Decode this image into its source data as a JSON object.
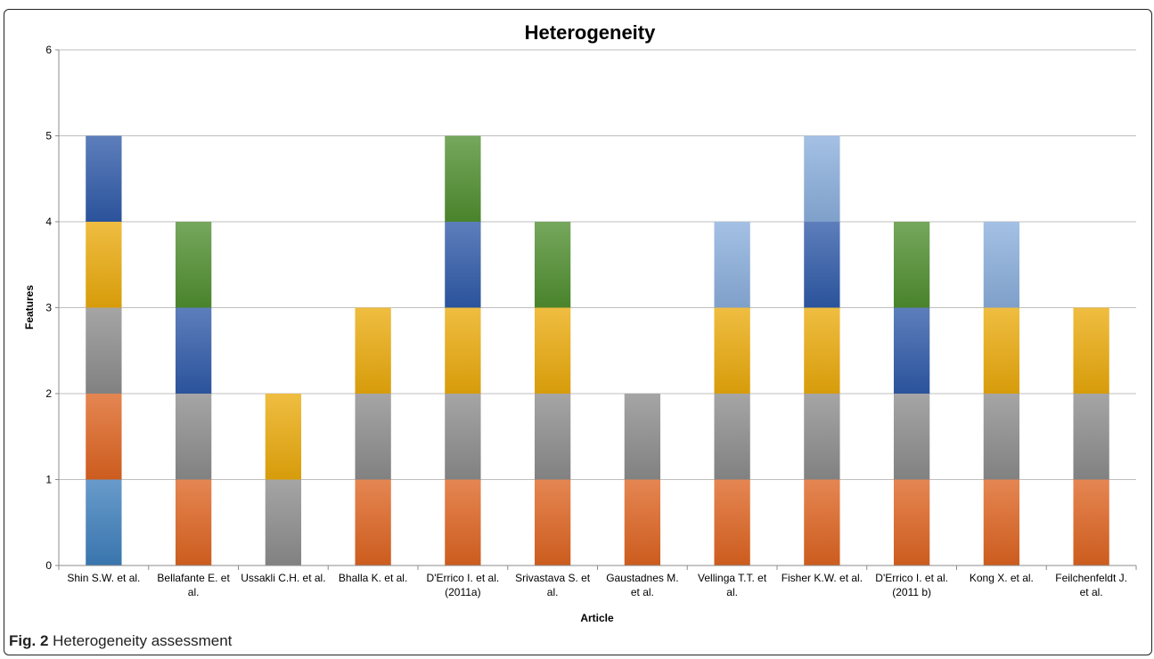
{
  "caption": {
    "label": "Fig. 2",
    "text": "Heterogeneity assessment"
  },
  "chart_data": {
    "type": "bar",
    "stacked": true,
    "title": "Heterogeneity",
    "xlabel": "Article",
    "ylabel": "Features",
    "ylim": [
      0,
      6
    ],
    "yticks": [
      0,
      1,
      2,
      3,
      4,
      5,
      6
    ],
    "grid": true,
    "legend": "none",
    "categories": [
      [
        "Shin S.W. et al."
      ],
      [
        "Bellafante E. et",
        "al."
      ],
      [
        "Ussakli C.H. et al."
      ],
      [
        "Bhalla K. et al."
      ],
      [
        "D'Errico I. et al.",
        "(2011a)"
      ],
      [
        "Srivastava S. et",
        "al."
      ],
      [
        "Gaustadnes M.",
        "et al."
      ],
      [
        "Vellinga T.T. et",
        "al."
      ],
      [
        "Fisher K.W. et al."
      ],
      [
        "D'Errico I. et al.",
        "(2011 b)"
      ],
      [
        "Kong X. et al."
      ],
      [
        "Feilchenfeldt J.",
        "et al."
      ]
    ],
    "colors": {
      "steel_blue": "#3e7fbc",
      "orange": "#de6421",
      "gray": "#8c8c8c",
      "gold": "#eaaa0c",
      "blue": "#2f5aa8",
      "green": "#4f8e2f",
      "light_blue": "#8aaedc"
    },
    "stacks": [
      [
        "steel_blue",
        "orange",
        "gray",
        "gold",
        "blue"
      ],
      [
        "orange",
        "gray",
        "blue",
        "green"
      ],
      [
        "gray",
        "gold"
      ],
      [
        "orange",
        "gray",
        "gold"
      ],
      [
        "orange",
        "gray",
        "gold",
        "blue",
        "green"
      ],
      [
        "orange",
        "gray",
        "gold",
        "green"
      ],
      [
        "orange",
        "gray"
      ],
      [
        "orange",
        "gray",
        "gold",
        "light_blue"
      ],
      [
        "orange",
        "gray",
        "gold",
        "blue",
        "light_blue"
      ],
      [
        "orange",
        "gray",
        "blue",
        "green"
      ],
      [
        "orange",
        "gray",
        "gold",
        "light_blue"
      ],
      [
        "orange",
        "gray",
        "gold"
      ]
    ],
    "totals": [
      5,
      4,
      2,
      3,
      5,
      4,
      2,
      4,
      5,
      4,
      4,
      3
    ]
  }
}
